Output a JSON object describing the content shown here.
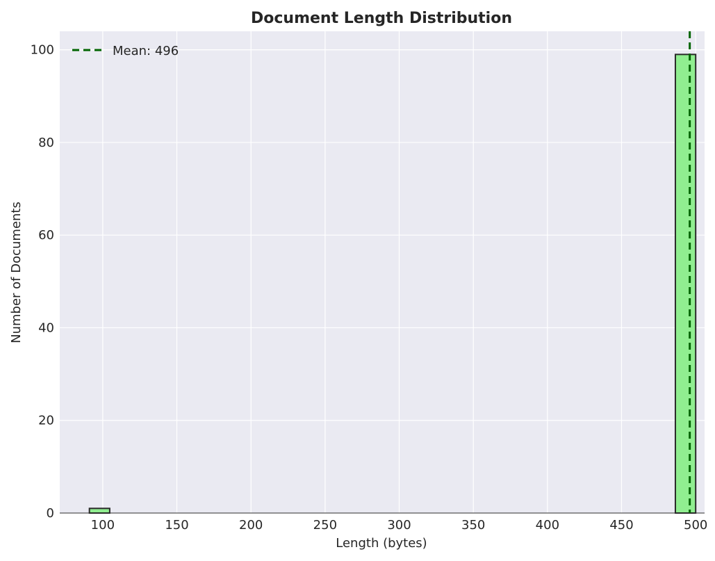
{
  "chart_data": {
    "type": "bar",
    "title": "Document Length Distribution",
    "xlabel": "Length (bytes)",
    "ylabel": "Number of Documents",
    "xlim": [
      71,
      506
    ],
    "ylim": [
      0,
      104
    ],
    "x_ticks": [
      100,
      150,
      200,
      250,
      300,
      350,
      400,
      450,
      500
    ],
    "y_ticks": [
      0,
      20,
      40,
      60,
      80,
      100
    ],
    "grid": true,
    "bins": [
      {
        "x0": 91,
        "x1": 104.7,
        "count": 1
      },
      {
        "x0": 104.7,
        "x1": 486.3,
        "count": 0
      },
      {
        "x0": 486.3,
        "x1": 500,
        "count": 99
      }
    ],
    "mean_line": {
      "x": 496,
      "label": "Mean: 496",
      "color": "#006400",
      "style": "dashed"
    },
    "legend": {
      "position": "top-left",
      "entries": [
        "Mean: 496"
      ]
    },
    "colors": {
      "bar_fill": "#90EE90",
      "bar_edge": "#2a2a2a",
      "plot_background": "#EAEAF2",
      "grid": "#ffffff",
      "mean_line": "#006400"
    }
  }
}
